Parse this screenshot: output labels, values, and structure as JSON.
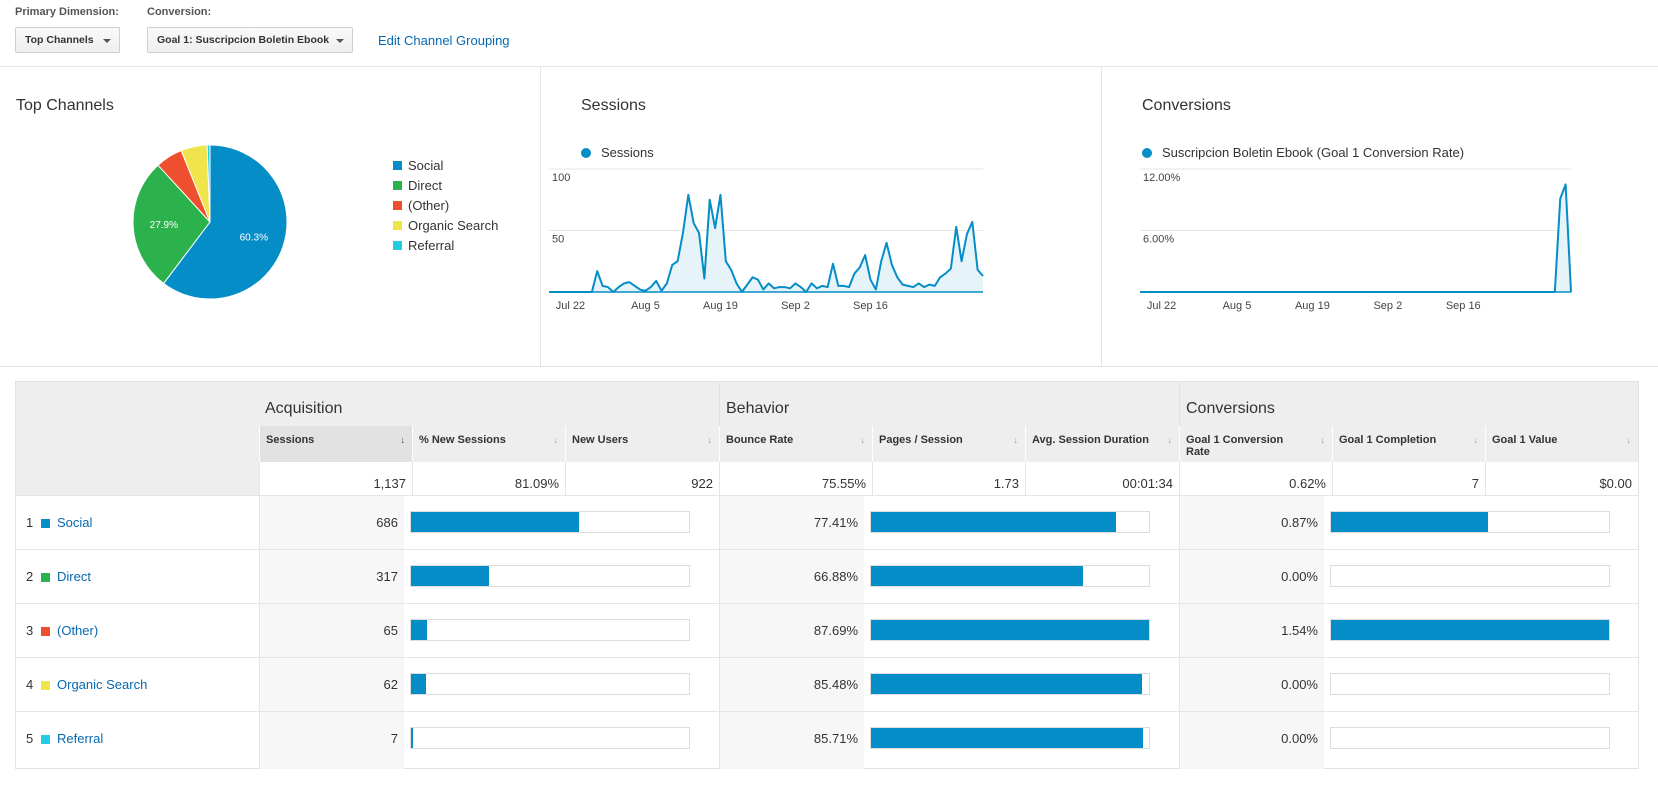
{
  "controls": {
    "primary_dimension_label": "Primary Dimension:",
    "primary_dimension_value": "Top Channels",
    "conversion_label": "Conversion:",
    "conversion_value": "Goal 1: Suscripcion Boletin Ebook",
    "edit_link": "Edit Channel Grouping"
  },
  "panels": {
    "top_channels_title": "Top Channels",
    "sessions_title": "Sessions",
    "conversions_title": "Conversions"
  },
  "chart_data": [
    {
      "type": "pie",
      "title": "Top Channels",
      "categories": [
        "Social",
        "Direct",
        "(Other)",
        "Organic Search",
        "Referral"
      ],
      "values": [
        60.3,
        27.9,
        5.7,
        5.5,
        0.6
      ],
      "data_labels": [
        "60.3%",
        "27.9%",
        "",
        "",
        ""
      ],
      "colors": [
        "#058dc7",
        "#2bb24c",
        "#ee4f2e",
        "#f0e44d",
        "#24cbe5"
      ],
      "legend": "right"
    },
    {
      "type": "area",
      "series": [
        {
          "name": "Sessions",
          "color": "#058dc7",
          "values": [
            0,
            0,
            0,
            0,
            0,
            0,
            0,
            0,
            0,
            17,
            5,
            4,
            0,
            4,
            7,
            8,
            5,
            2,
            1,
            4,
            9,
            1,
            7,
            22,
            25,
            48,
            79,
            56,
            48,
            11,
            75,
            52,
            79,
            25,
            18,
            7,
            0,
            6,
            12,
            10,
            2,
            7,
            3,
            4,
            4,
            3,
            7,
            4,
            0,
            7,
            3,
            5,
            4,
            23,
            5,
            5,
            4,
            15,
            20,
            30,
            10,
            2,
            25,
            40,
            22,
            12,
            6,
            5,
            4,
            7,
            4,
            6,
            5,
            12,
            15,
            19,
            53,
            25,
            47,
            57,
            18,
            13
          ]
        }
      ],
      "x_tick_labels": [
        "Jul 22",
        "Aug 5",
        "Aug 19",
        "Sep 2",
        "Sep 16"
      ],
      "y_tick_labels": [
        "100",
        "50"
      ],
      "ylim": [
        0,
        100
      ],
      "grid": true,
      "legend": "top-left"
    },
    {
      "type": "area",
      "series": [
        {
          "name": "Suscripcion Boletin Ebook (Goal 1 Conversion Rate)",
          "color": "#058dc7",
          "values": [
            0,
            0,
            0,
            0,
            0,
            0,
            0,
            0,
            0,
            0,
            0,
            0,
            0,
            0,
            0,
            0,
            0,
            0,
            0,
            0,
            0,
            0,
            0,
            0,
            0,
            0,
            0,
            0,
            0,
            0,
            0,
            0,
            0,
            0,
            0,
            0,
            0,
            0,
            0,
            0,
            0,
            0,
            0,
            0,
            0,
            0,
            0,
            0,
            0,
            0,
            0,
            0,
            0,
            0,
            0,
            0,
            0,
            0,
            0,
            0,
            0,
            0,
            0,
            0,
            0,
            0,
            0,
            0,
            0,
            0,
            0,
            0,
            0,
            0,
            0,
            0,
            0,
            0,
            9.1,
            10.5,
            0
          ]
        }
      ],
      "x_tick_labels": [
        "Jul 22",
        "Aug 5",
        "Aug 19",
        "Sep 2",
        "Sep 16"
      ],
      "y_tick_labels": [
        "12.00%",
        "6.00%"
      ],
      "ylim": [
        0,
        12
      ],
      "grid": true,
      "legend": "top-left"
    }
  ],
  "table": {
    "groups": {
      "acquisition": "Acquisition",
      "behavior": "Behavior",
      "conversions": "Conversions"
    },
    "columns": {
      "sessions": "Sessions",
      "pct_new_sessions": "% New Sessions",
      "new_users": "New Users",
      "bounce_rate": "Bounce Rate",
      "pages_session": "Pages / Session",
      "avg_duration": "Avg. Session Duration",
      "conv_rate": "Goal 1 Conversion Rate",
      "completion": "Goal 1 Completion",
      "value": "Goal 1 Value"
    },
    "totals": {
      "sessions": "1,137",
      "pct_new_sessions": "81.09%",
      "new_users": "922",
      "bounce_rate": "75.55%",
      "pages_session": "1.73",
      "avg_duration": "00:01:34",
      "conv_rate": "0.62%",
      "completion": "7",
      "value": "$0.00"
    },
    "rows": [
      {
        "num": "1",
        "name": "Social",
        "color": "#058dc7",
        "sessions": "686",
        "sessions_share": 0.603,
        "bounce_rate": "77.41%",
        "behavior_share": 0.883,
        "conv_rate": "0.87%",
        "conv_share": 0.565
      },
      {
        "num": "2",
        "name": "Direct",
        "color": "#2bb24c",
        "sessions": "317",
        "sessions_share": 0.279,
        "bounce_rate": "66.88%",
        "behavior_share": 0.763,
        "conv_rate": "0.00%",
        "conv_share": 0.0
      },
      {
        "num": "3",
        "name": "(Other)",
        "color": "#ee4f2e",
        "sessions": "65",
        "sessions_share": 0.057,
        "bounce_rate": "87.69%",
        "behavior_share": 1.0,
        "conv_rate": "1.54%",
        "conv_share": 1.0
      },
      {
        "num": "4",
        "name": "Organic Search",
        "color": "#f0e44d",
        "sessions": "62",
        "sessions_share": 0.055,
        "bounce_rate": "85.48%",
        "behavior_share": 0.975,
        "conv_rate": "0.00%",
        "conv_share": 0.0
      },
      {
        "num": "5",
        "name": "Referral",
        "color": "#24cbe5",
        "sessions": "7",
        "sessions_share": 0.006,
        "bounce_rate": "85.71%",
        "behavior_share": 0.977,
        "conv_rate": "0.00%",
        "conv_share": 0.0
      }
    ]
  }
}
